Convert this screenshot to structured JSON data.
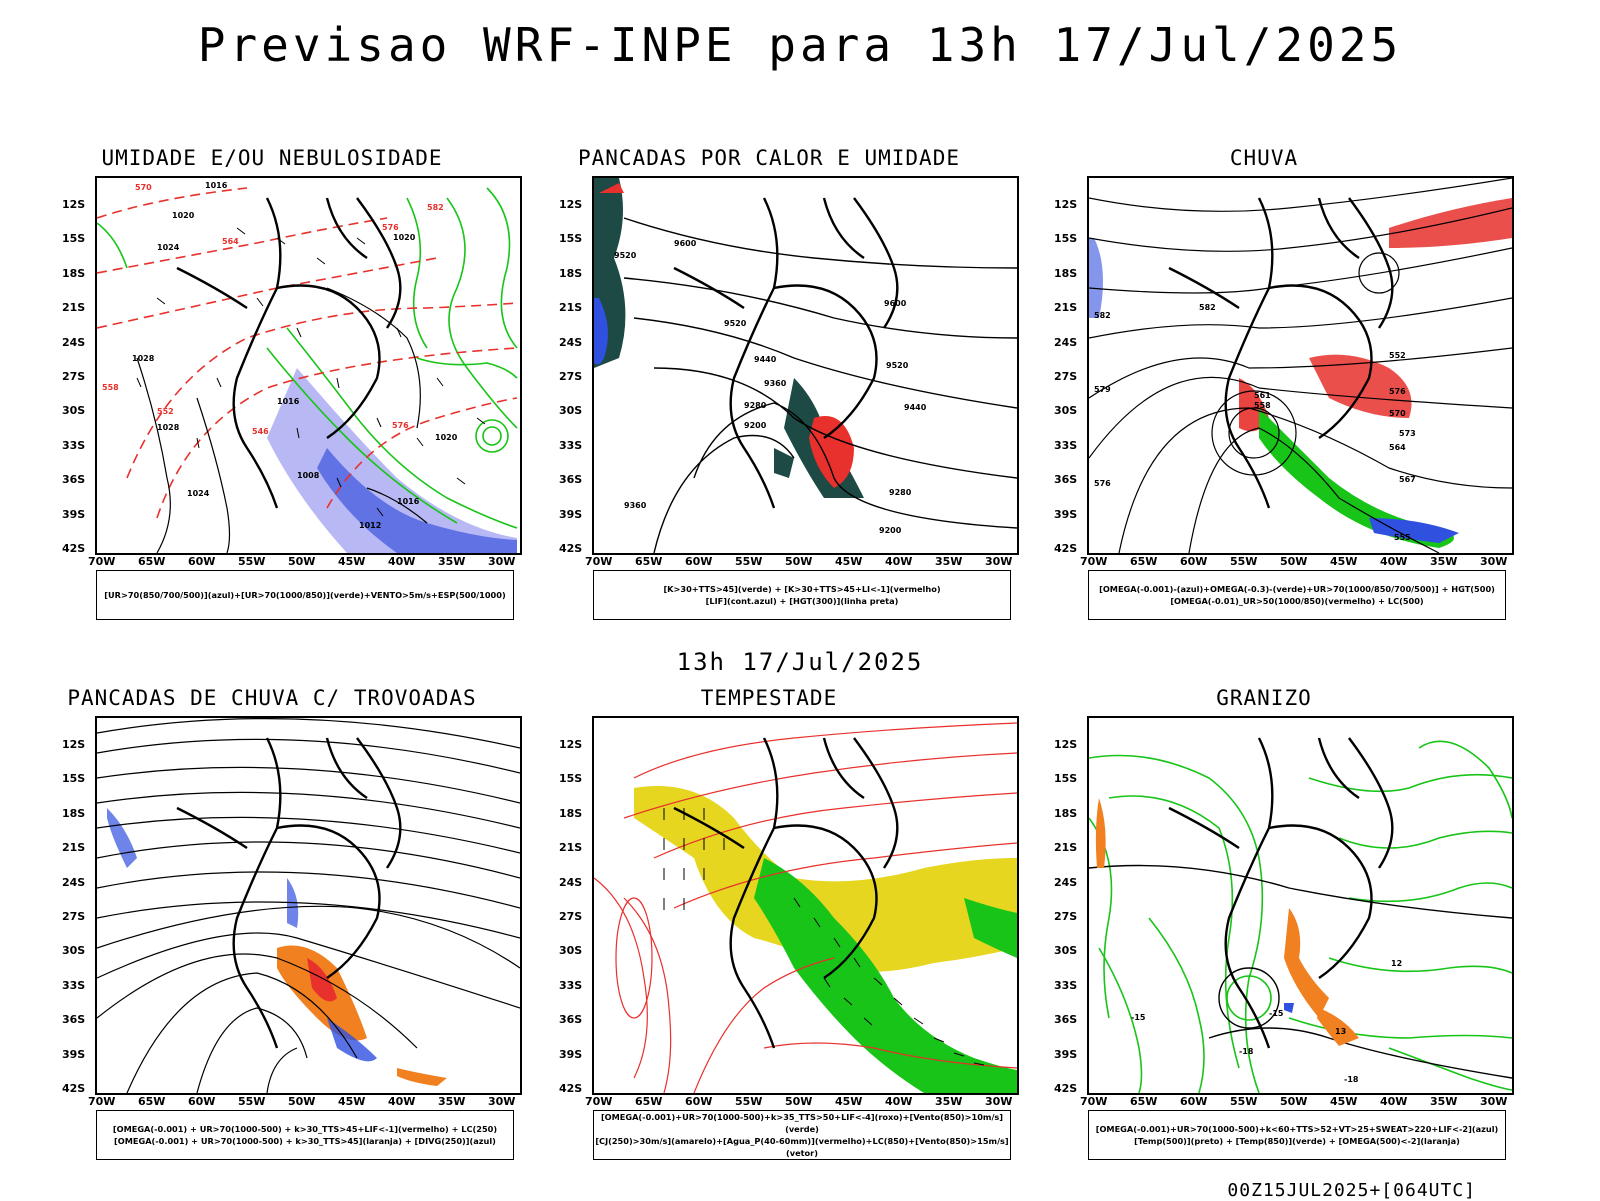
{
  "page": {
    "title": "Previsao WRF-INPE  para 13h 17/Jul/2025",
    "subtitle": "13h 17/Jul/2025",
    "footer": "00Z15JUL2025+[064UTC]"
  },
  "axes": {
    "lat_labels": [
      "12S",
      "15S",
      "18S",
      "21S",
      "24S",
      "27S",
      "30S",
      "33S",
      "36S",
      "39S",
      "42S"
    ],
    "lon_labels": [
      "70W",
      "65W",
      "60W",
      "55W",
      "50W",
      "45W",
      "40W",
      "35W",
      "30W"
    ]
  },
  "panels": [
    {
      "id": "umidade",
      "title": "UMIDADE E/OU NEBULOSIDADE",
      "legend": [
        "[UR>70(850/700/500)](azul)+[UR>70(1000/850)](verde)+VENTO>5m/s+ESP(500/1000)"
      ],
      "contour_labels": [
        "1016",
        "1020",
        "1024",
        "1020",
        "1028",
        "1028",
        "1024",
        "1016",
        "1012",
        "1016",
        "1020",
        "1008",
        "570",
        "576",
        "564",
        "558",
        "552",
        "546",
        "582",
        "576"
      ]
    },
    {
      "id": "pancadas-calor",
      "title": "PANCADAS POR CALOR E UMIDADE",
      "legend": [
        "[K>30+TTS>45](verde) + [K>30+TTS>45+LI<-1](vermelho)",
        "[LIF](cont.azul) + [HGT(300)](linha preta)"
      ],
      "contour_labels": [
        "9600",
        "9520",
        "9440",
        "9360",
        "9280",
        "9200",
        "9360",
        "9600",
        "9520",
        "9440",
        "9280",
        "9200",
        "9520"
      ]
    },
    {
      "id": "chuva",
      "title": "CHUVA",
      "legend": [
        "[OMEGA(-0.001)-(azul)+OMEGA(-0.3)-(verde)+UR>70(1000/850/700/500)] + HGT(500)",
        "[OMEGA(-0.01)_UR>50(1000/850)(vermelho) + LC(500)"
      ],
      "contour_labels": [
        "582",
        "576",
        "570",
        "567",
        "564",
        "561",
        "558",
        "555",
        "552",
        "573",
        "576",
        "579",
        "582"
      ]
    },
    {
      "id": "trovoadas",
      "title": "PANCADAS DE CHUVA C/ TROVOADAS",
      "legend": [
        "[OMEGA(-0.001) + UR>70(1000-500) + k>30_TTS>45+LIF<-1](vermelho) + LC(250)",
        "[OMEGA(-0.001) + UR>70(1000-500) + k>30_TTS>45](laranja) + [DIVG(250)](azul)"
      ],
      "contour_labels": []
    },
    {
      "id": "tempestade",
      "title": "TEMPESTADE",
      "legend": [
        "[OMEGA(-0.001)+UR>70(1000-500)+k>35_TTS>50+LIF<-4](roxo)+[Vento(850)>10m/s](verde)",
        "[CJ(250)>30m/s](amarelo)+[Agua_P(40-60mm)](vermelho)+LC(850)+[Vento(850)>15m/s](vetor)"
      ],
      "contour_labels": []
    },
    {
      "id": "granizo",
      "title": "GRANIZO",
      "legend": [
        "[OMEGA(-0.001)+UR>70(1000-500)+k<60+TTS>52+VT>25+SWEAT>220+LIF<-2](azul)",
        "[Temp(500)](preto) + [Temp(850)](verde) + [OMEGA(500)<-2](laranja)"
      ],
      "contour_labels": [
        "12",
        "-15",
        "-18",
        "-18",
        "-15",
        "13"
      ]
    }
  ],
  "colors": {
    "red": "#e8302c",
    "green": "#18c418",
    "blue": "#3050e0",
    "lightblue": "#a8a8f0",
    "darkteal": "#1d4a44",
    "yellow": "#e6d620",
    "orange": "#f08020",
    "lineblack": "#000000"
  }
}
